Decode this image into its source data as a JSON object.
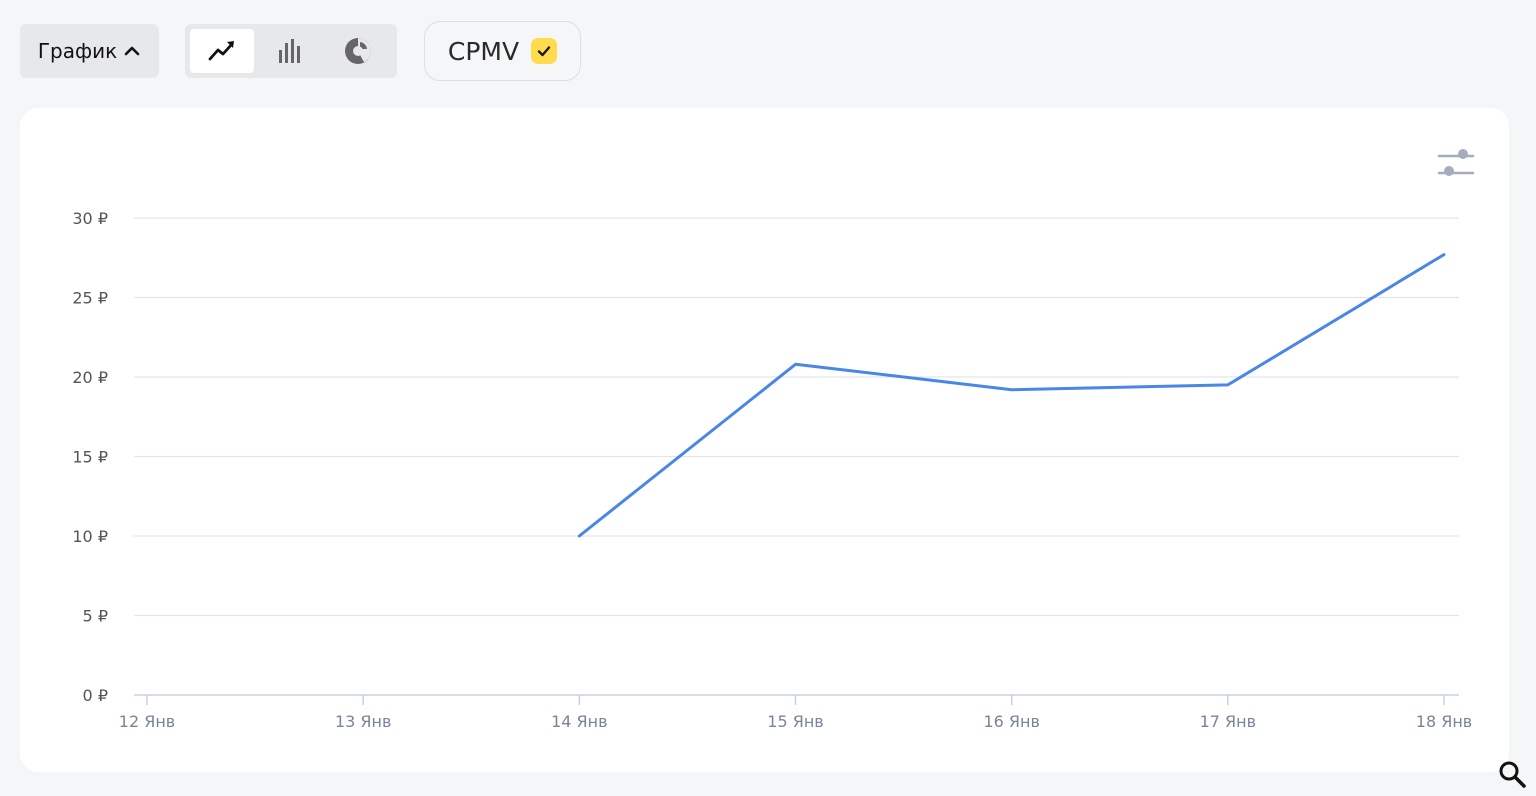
{
  "toolbar": {
    "view_toggle_label": "График",
    "chart_types": [
      {
        "name": "line",
        "icon": "line-chart-icon",
        "active": true
      },
      {
        "name": "bar",
        "icon": "bar-chart-icon",
        "active": false
      },
      {
        "name": "pie",
        "icon": "pie-chart-icon",
        "active": false
      }
    ],
    "metric_label": "CPMV",
    "metric_checked": true
  },
  "colors": {
    "line": "#4a86e8",
    "grid": "#e3e5e9",
    "axis": "#c8d0e0",
    "checkbox": "#ffdb4d"
  },
  "chart_data": {
    "type": "line",
    "title": "",
    "xlabel": "",
    "ylabel": "",
    "categories": [
      "12 Янв",
      "13 Янв",
      "14 Янв",
      "15 Янв",
      "16 Янв",
      "17 Янв",
      "18 Янв"
    ],
    "series": [
      {
        "values": [
          null,
          null,
          10,
          20.8,
          19.2,
          19.5,
          27.7
        ]
      }
    ],
    "ylim": [
      0,
      30
    ],
    "yticks": [
      0,
      5,
      10,
      15,
      20,
      25,
      30
    ],
    "ytick_labels": [
      "0 ₽",
      "5 ₽",
      "10 ₽",
      "15 ₽",
      "20 ₽",
      "25 ₽",
      "30 ₽"
    ],
    "grid": true,
    "legend": "none"
  }
}
